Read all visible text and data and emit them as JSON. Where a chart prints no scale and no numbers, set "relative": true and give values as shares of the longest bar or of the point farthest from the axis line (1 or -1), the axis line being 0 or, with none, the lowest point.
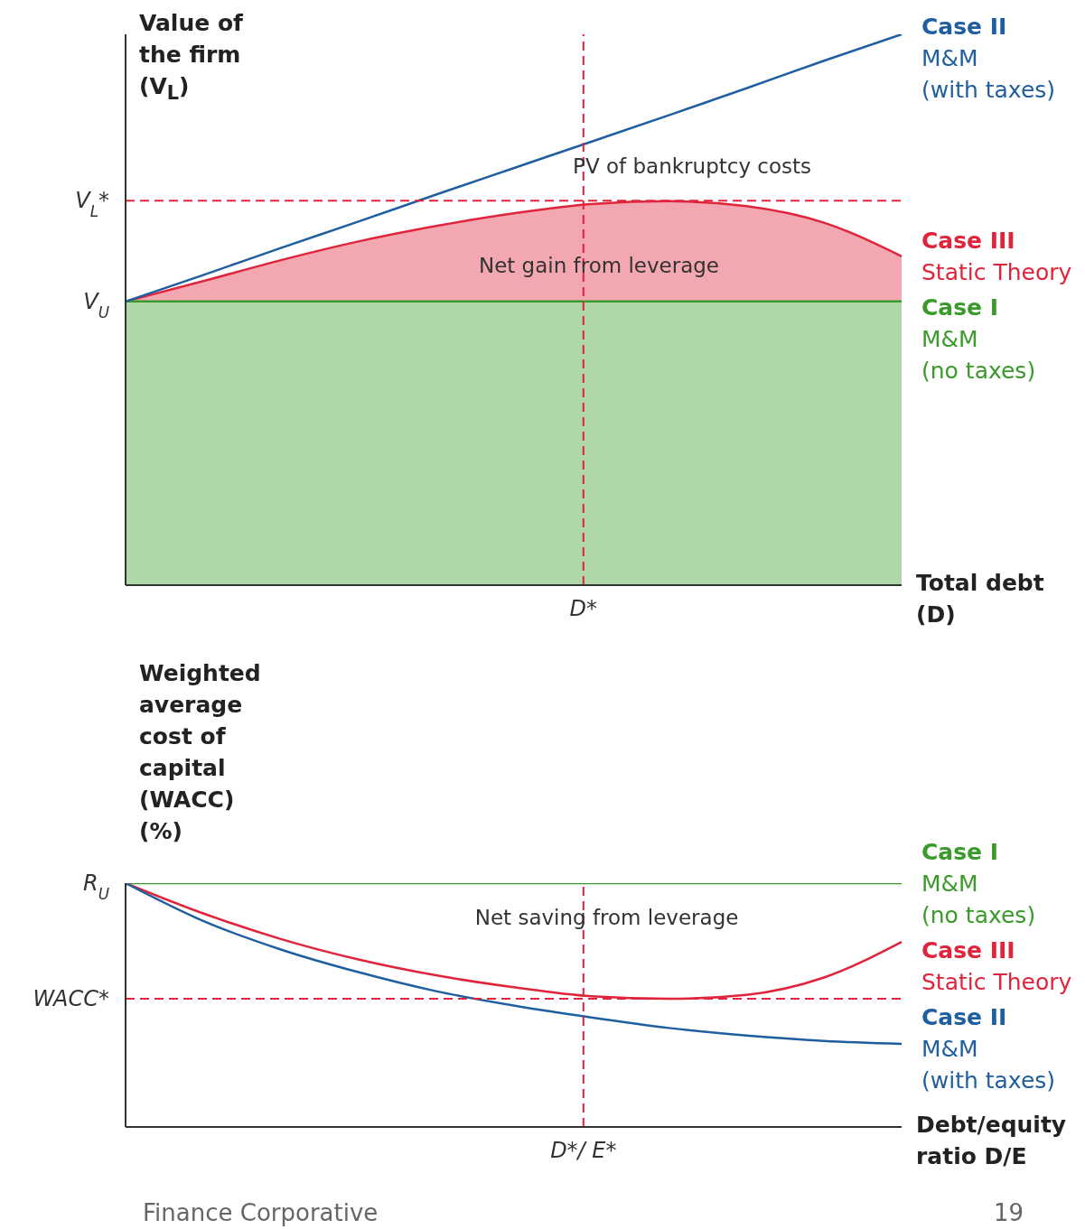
{
  "chart_data": [
    {
      "type": "area",
      "ylabel": "Value of the firm (V$_{L}$)",
      "xlabel": "Total debt (D)",
      "relative": true,
      "categories": [
        null,
        null,
        null,
        null,
        null,
        null,
        null,
        null,
        null,
        null,
        null
      ],
      "series": [
        {
          "type": "line",
          "name": "Case II\nM&M\n(with taxes)",
          "color": "#1f5fa0",
          "values": [
            0.515,
            0.563,
            0.612,
            0.66,
            0.709,
            0.757,
            0.805,
            0.853,
            0.902,
            0.952,
            1
          ]
        },
        {
          "name": "Case III\nStatic Theory",
          "color": "#e0243c",
          "values": [
            0.515,
            0.552,
            0.59,
            0.624,
            0.652,
            0.675,
            0.692,
            0.697,
            0.688,
            0.658,
            0.597
          ]
        },
        {
          "name": "Case I\nM&M\n(no taxes)",
          "color": "#3a9a2a",
          "values": [
            0.515,
            0.515,
            0.515,
            0.515,
            0.515,
            0.515,
            0.515,
            0.515,
            0.515,
            0.515,
            0.515
          ]
        }
      ],
      "ref_lines": [
        {
          "axis": "y",
          "value": 0.698,
          "label": "V$_{L}$*",
          "color": "#e0243c",
          "line_style": "dashed"
        }
      ],
      "annotations": [
        "V$_{U}$",
        "D*",
        "PV of bankruptcy costs",
        "Net gain from leverage"
      ]
    },
    {
      "type": "line",
      "ylabel": "Weighted average cost of capital (WACC) (%)",
      "xlabel": "Debt/equity ratio D/E",
      "relative": true,
      "categories": [
        null,
        null,
        null,
        null,
        null,
        null,
        null,
        null,
        null,
        null,
        null
      ],
      "series": [
        {
          "name": "Case I\nM&M\n(no taxes)",
          "color": "#3a9a2a",
          "values": [
            1,
            1,
            1,
            1,
            1,
            1,
            1,
            1,
            1,
            1,
            1
          ]
        },
        {
          "type": "line",
          "name": "Case III\nStatic Theory",
          "color": "#e0243c",
          "values": [
            1,
            0.876,
            0.771,
            0.687,
            0.622,
            0.573,
            0.536,
            0.526,
            0.542,
            0.613,
            0.759
          ]
        },
        {
          "type": "line",
          "name": "Case II\nM&M\n(with taxes)",
          "color": "#1f5fa0",
          "values": [
            1,
            0.845,
            0.728,
            0.635,
            0.557,
            0.498,
            0.449,
            0.406,
            0.375,
            0.353,
            0.341
          ]
        }
      ],
      "ref_lines": [
        {
          "axis": "y",
          "value": 0.526,
          "label": "WACC*",
          "color": "#e0243c",
          "line_style": "dashed"
        }
      ],
      "annotations": [
        "R$_{U}$",
        "D*/ E*",
        "Net saving from leverage",
        "Finance Corporative",
        "19"
      ]
    }
  ]
}
